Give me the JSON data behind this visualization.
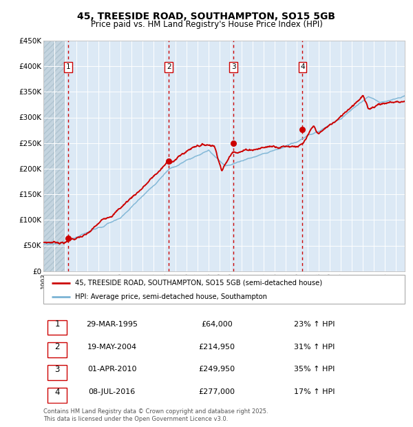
{
  "title": "45, TREESIDE ROAD, SOUTHAMPTON, SO15 5GB",
  "subtitle": "Price paid vs. HM Land Registry's House Price Index (HPI)",
  "ylim": [
    0,
    450000
  ],
  "yticks": [
    0,
    50000,
    100000,
    150000,
    200000,
    250000,
    300000,
    350000,
    400000,
    450000
  ],
  "ytick_labels": [
    "£0",
    "£50K",
    "£100K",
    "£150K",
    "£200K",
    "£250K",
    "£300K",
    "£350K",
    "£400K",
    "£450K"
  ],
  "xlim_start": 1993.0,
  "xlim_end": 2025.8,
  "plot_bg_color": "#dce9f5",
  "grid_color": "#ffffff",
  "sale_color": "#cc0000",
  "hpi_color": "#7ab3d4",
  "vline_color": "#cc0000",
  "purchases": [
    {
      "num": 1,
      "date_x": 1995.24,
      "price": 64000,
      "label": "1",
      "pct": "23%",
      "date_str": "29-MAR-1995",
      "price_str": "£64,000"
    },
    {
      "num": 2,
      "date_x": 2004.38,
      "price": 214950,
      "label": "2",
      "pct": "31%",
      "date_str": "19-MAY-2004",
      "price_str": "£214,950"
    },
    {
      "num": 3,
      "date_x": 2010.25,
      "price": 249950,
      "label": "3",
      "pct": "35%",
      "date_str": "01-APR-2010",
      "price_str": "£249,950"
    },
    {
      "num": 4,
      "date_x": 2016.52,
      "price": 277000,
      "label": "4",
      "pct": "17%",
      "date_str": "08-JUL-2016",
      "price_str": "£277,000"
    }
  ],
  "legend_line1": "45, TREESIDE ROAD, SOUTHAMPTON, SO15 5GB (semi-detached house)",
  "legend_line2": "HPI: Average price, semi-detached house, Southampton",
  "footer1": "Contains HM Land Registry data © Crown copyright and database right 2025.",
  "footer2": "This data is licensed under the Open Government Licence v3.0."
}
